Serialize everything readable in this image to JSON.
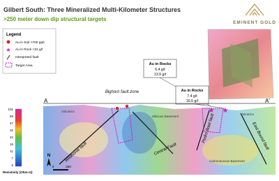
{
  "header": {
    "title": "Gilbert South: Three Mineralized Multi-Kilometer Structures",
    "subtitle": ">250 meter down dip structural targets",
    "logo": "EMINENT GOLD"
  },
  "legend": {
    "title": "Legend",
    "items": [
      "Au in Soil >700 ppb",
      "Au in Rock >31 g/t",
      "Interpreted fault",
      "Target Area"
    ]
  },
  "callouts": [
    {
      "title": "Au in Rocks",
      "lines": [
        "6.4 g/t",
        "13.9 g/t"
      ]
    },
    {
      "title": "Au in Rocks",
      "lines": [
        "7.4 g/t",
        "16.5 g/t"
      ]
    }
  ],
  "section": {
    "start": "A",
    "end": "A'",
    "labels": [
      "Bighorn fault zone",
      "Volcanics",
      "Silicious Basement",
      "Volcanics",
      "Carbonaceous Basement"
    ],
    "faults": [
      "Wildhorse fault",
      "Central Fault",
      "Pedro Bowl fault",
      "East Bound fault"
    ],
    "north": "N",
    "scale": [
      "0",
      "250"
    ]
  },
  "colorbar": {
    "ticks": [
      "101",
      "69",
      "47",
      "32",
      "22",
      "15",
      "11",
      "7",
      "5"
    ],
    "label": "Resistivity (Ohm-m)"
  }
}
